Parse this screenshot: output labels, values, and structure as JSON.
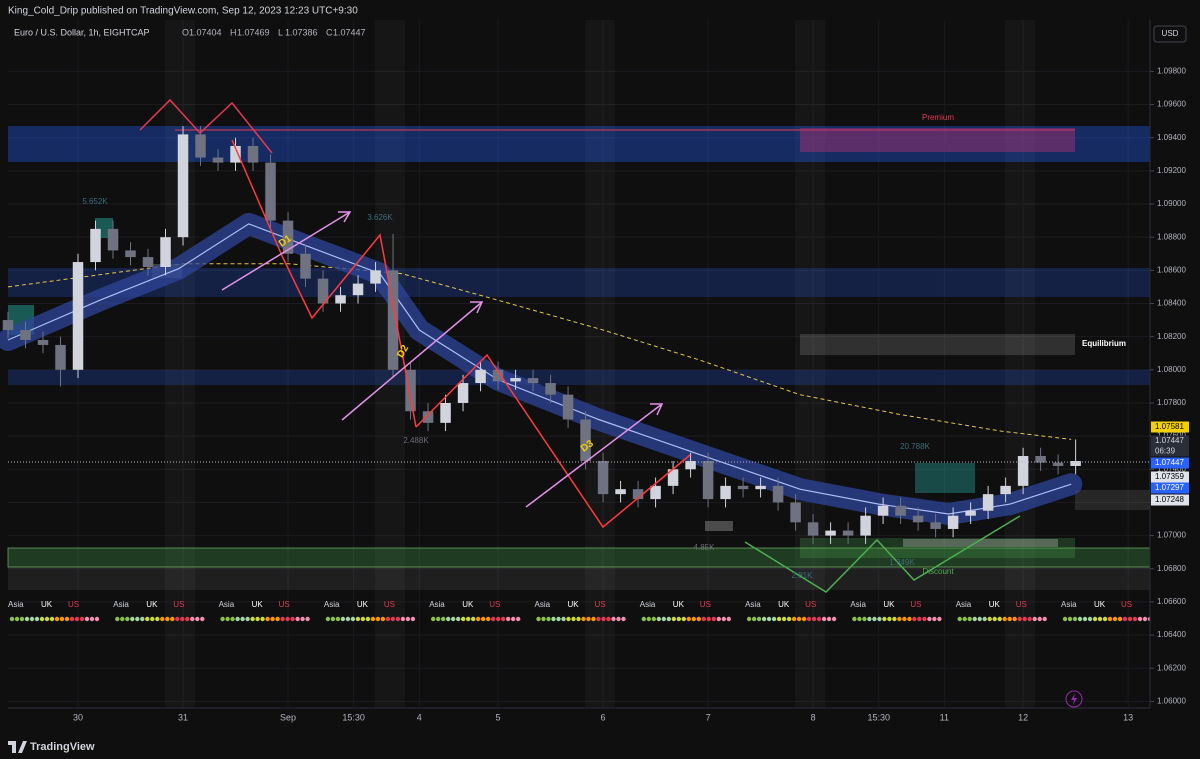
{
  "chart_data": {
    "type": "candlestick",
    "header": "King_Cold_Drip published on TradingView.com, Sep 12, 2023 12:23 UTC+9:30",
    "title": "Euro / U.S. Dollar, 1h, EIGHTCAP",
    "ohlc_legend": [
      {
        "label": "O",
        "value": 1.07404
      },
      {
        "label": "H",
        "value": 1.07469
      },
      {
        "label": "L",
        "value": 1.07386
      },
      {
        "label": "C",
        "value": 1.07447
      }
    ],
    "currency": "USD",
    "footer": "TradingView",
    "up_color": "#d1d4dc",
    "down_color": "#6f7280",
    "x": [
      0,
      4,
      8,
      12,
      16,
      20,
      24,
      28,
      32,
      36,
      40,
      44,
      48,
      52,
      56,
      60,
      64,
      68,
      72,
      76,
      80,
      84,
      88,
      92,
      96,
      100,
      104,
      108,
      112,
      116,
      120,
      124,
      128,
      132,
      136,
      140,
      144,
      148,
      152,
      156,
      160,
      164,
      168,
      172,
      176,
      180,
      184,
      188,
      192,
      196,
      200,
      204,
      208,
      212,
      216,
      220,
      224,
      228,
      232,
      236,
      240,
      244
    ],
    "open": [
      1.083,
      1.0824,
      1.0818,
      1.0815,
      1.08,
      1.0865,
      1.0885,
      1.0872,
      1.0868,
      1.0862,
      1.088,
      1.0942,
      1.0928,
      1.0925,
      1.0935,
      1.0925,
      1.089,
      1.087,
      1.0855,
      1.084,
      1.0845,
      1.0852,
      1.086,
      1.08,
      1.0775,
      1.0768,
      1.078,
      1.0792,
      1.08,
      1.0793,
      1.0795,
      1.0792,
      1.0785,
      1.077,
      1.0745,
      1.0725,
      1.0728,
      1.0722,
      1.073,
      1.074,
      1.0745,
      1.0722,
      1.073,
      1.0728,
      1.073,
      1.072,
      1.0708,
      1.07,
      1.0703,
      1.07,
      1.0712,
      1.0718,
      1.0712,
      1.0708,
      1.0704,
      1.0712,
      1.0715,
      1.0725,
      1.073,
      1.0748,
      1.0744,
      1.0742
    ],
    "high": [
      1.0835,
      1.0829,
      1.0823,
      1.082,
      1.087,
      1.089,
      1.089,
      1.0877,
      1.0873,
      1.0885,
      1.0947,
      1.0947,
      1.0933,
      1.094,
      1.094,
      1.093,
      1.0895,
      1.0875,
      1.086,
      1.085,
      1.0857,
      1.0865,
      1.0882,
      1.0805,
      1.078,
      1.0785,
      1.0797,
      1.0805,
      1.0805,
      1.08,
      1.08,
      1.0797,
      1.079,
      1.0775,
      1.075,
      1.0733,
      1.0733,
      1.0735,
      1.0745,
      1.075,
      1.075,
      1.0735,
      1.0735,
      1.0735,
      1.0735,
      1.0725,
      1.0713,
      1.0708,
      1.0708,
      1.0717,
      1.0723,
      1.0723,
      1.0717,
      1.0713,
      1.0717,
      1.072,
      1.073,
      1.0735,
      1.0753,
      1.0753,
      1.0749,
      1.0758
    ],
    "low": [
      1.0819,
      1.0813,
      1.081,
      1.079,
      1.0795,
      1.086,
      1.0867,
      1.0863,
      1.0857,
      1.0857,
      1.0875,
      1.0923,
      1.092,
      1.092,
      1.092,
      1.0885,
      1.0865,
      1.085,
      1.0835,
      1.0835,
      1.084,
      1.0847,
      1.0795,
      1.077,
      1.0763,
      1.0763,
      1.0775,
      1.0787,
      1.0788,
      1.0788,
      1.0787,
      1.078,
      1.0765,
      1.074,
      1.072,
      1.072,
      1.0717,
      1.0717,
      1.0725,
      1.0735,
      1.0717,
      1.0717,
      1.0723,
      1.0723,
      1.0715,
      1.0703,
      1.0695,
      1.0695,
      1.0695,
      1.0695,
      1.0707,
      1.0707,
      1.0703,
      1.0699,
      1.0699,
      1.0707,
      1.071,
      1.072,
      1.0725,
      1.0739,
      1.0737,
      1.0737
    ],
    "close": [
      1.0824,
      1.0818,
      1.0815,
      1.08,
      1.0865,
      1.0885,
      1.0872,
      1.0868,
      1.0862,
      1.088,
      1.0942,
      1.0928,
      1.0925,
      1.0935,
      1.0925,
      1.089,
      1.087,
      1.0855,
      1.084,
      1.0845,
      1.0852,
      1.086,
      1.08,
      1.0775,
      1.0768,
      1.078,
      1.0792,
      1.08,
      1.0793,
      1.0795,
      1.0792,
      1.0785,
      1.077,
      1.0745,
      1.0725,
      1.0728,
      1.0722,
      1.073,
      1.074,
      1.0745,
      1.0722,
      1.073,
      1.0728,
      1.073,
      1.072,
      1.0708,
      1.07,
      1.0703,
      1.07,
      1.0712,
      1.0718,
      1.0712,
      1.0708,
      1.0704,
      1.0712,
      1.0715,
      1.0725,
      1.073,
      1.0748,
      1.0744,
      1.0742,
      1.0745
    ],
    "indicators": [
      {
        "color": "#e8c547",
        "dashed": true,
        "x": [
          0,
          40,
          64,
          90,
          112,
          136,
          158,
          181,
          204,
          227,
          243
        ],
        "values": [
          1.085,
          1.0864,
          1.0864,
          1.0858,
          1.0842,
          1.0824,
          1.0806,
          1.0785,
          1.0773,
          1.0763,
          1.0758
        ]
      },
      {
        "color": "#aebcf5",
        "band_color": "#2e4699",
        "dashed": false,
        "x": [
          0,
          21,
          39,
          55,
          67,
          85,
          94,
          112,
          135,
          158,
          181,
          199,
          215,
          229,
          243
        ],
        "values": [
          1.0818,
          1.0842,
          1.0861,
          1.0888,
          1.0876,
          1.0858,
          1.0824,
          1.0794,
          1.077,
          1.0749,
          1.0728,
          1.0719,
          1.0713,
          1.0719,
          1.0731
        ]
      }
    ],
    "xlim": [
      0,
      261
    ],
    "xticks": [
      {
        "value": 16,
        "label": "30"
      },
      {
        "value": 40,
        "label": "31"
      },
      {
        "value": 64,
        "label": "Sep"
      },
      {
        "value": 79,
        "label": "15:30"
      },
      {
        "value": 94,
        "label": "4"
      },
      {
        "value": 112,
        "label": "5"
      },
      {
        "value": 136,
        "label": "6"
      },
      {
        "value": 160,
        "label": "7"
      },
      {
        "value": 184,
        "label": "8"
      },
      {
        "value": 199,
        "label": "15:30"
      },
      {
        "value": 214,
        "label": "11"
      },
      {
        "value": 232,
        "label": "12"
      },
      {
        "value": 256,
        "label": "13"
      }
    ],
    "ylim": [
      1.0596,
      1.1011
    ],
    "yticks": [
      {
        "value": 1.06,
        "label": "1.06000"
      },
      {
        "value": 1.062,
        "label": "1.06200"
      },
      {
        "value": 1.064,
        "label": "1.06400"
      },
      {
        "value": 1.066,
        "label": "1.06600"
      },
      {
        "value": 1.068,
        "label": "1.06800"
      },
      {
        "value": 1.07,
        "label": "1.07000"
      },
      {
        "value": 1.072,
        "label": "1.07200"
      },
      {
        "value": 1.074,
        "label": "1.07400"
      },
      {
        "value": 1.076,
        "label": "1.07600"
      },
      {
        "value": 1.078,
        "label": "1.07800"
      },
      {
        "value": 1.08,
        "label": "1.08000"
      },
      {
        "value": 1.082,
        "label": "1.08200"
      },
      {
        "value": 1.084,
        "label": "1.08400"
      },
      {
        "value": 1.086,
        "label": "1.08600"
      },
      {
        "value": 1.088,
        "label": "1.08800"
      },
      {
        "value": 1.09,
        "label": "1.09000"
      },
      {
        "value": 1.092,
        "label": "1.09200"
      },
      {
        "value": 1.094,
        "label": "1.09400"
      },
      {
        "value": 1.096,
        "label": "1.09600"
      },
      {
        "value": 1.098,
        "label": "1.09800"
      }
    ],
    "grid": true,
    "price_labels": [
      {
        "value": 1.07581,
        "bg": "#f5d000",
        "fg": "#000000"
      },
      {
        "value": 1.07447,
        "bg": "#2a2e39",
        "fg": "#d1d4dc",
        "countdown": "06:39"
      },
      {
        "value": 1.07447,
        "bg": "#2962ff",
        "fg": "#ffffff"
      },
      {
        "value": 1.07359,
        "bg": "#e0e3eb",
        "fg": "#000000"
      },
      {
        "value": 1.07297,
        "bg": "#2962ff",
        "fg": "#ffffff"
      },
      {
        "value": 1.07248,
        "bg": "#e0e3eb",
        "fg": "#000000"
      }
    ],
    "annotations": {
      "premium": "Premium",
      "equilibrium": "Equilibrium",
      "discount": "Discount",
      "d1": "D1",
      "d2": "D2",
      "d3": "D3",
      "volumes": [
        "5.652K",
        "3.626K",
        "2.488K",
        "4.85K",
        "2.81K",
        "20.788K",
        "1.949K"
      ]
    },
    "sessions": [
      "Asia",
      "UK",
      "US"
    ]
  }
}
